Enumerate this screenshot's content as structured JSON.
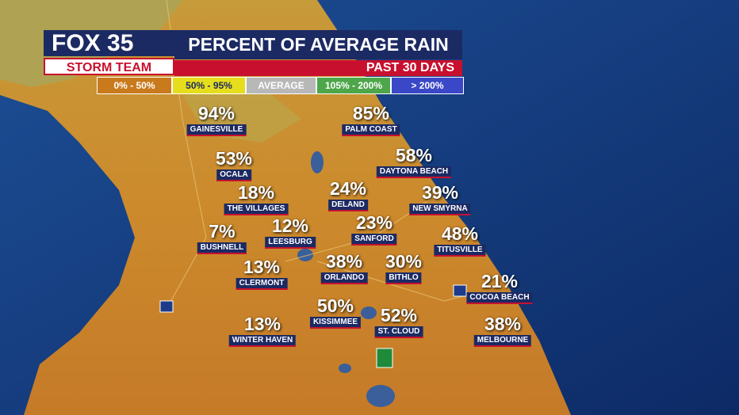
{
  "header": {
    "logo": "FOX",
    "channel": "35",
    "brand": "STORM TEAM",
    "title": "PERCENT OF AVERAGE RAIN",
    "subtitle": "PAST 30 DAYS"
  },
  "legend": [
    "0% - 50%",
    "50% - 95%",
    "AVERAGE",
    "105% - 200%",
    "> 200%"
  ],
  "cities": [
    {
      "name": "GAINESVILLE",
      "value": "94%"
    },
    {
      "name": "PALM COAST",
      "value": "85%"
    },
    {
      "name": "OCALA",
      "value": "53%"
    },
    {
      "name": "DAYTONA BEACH",
      "value": "58%"
    },
    {
      "name": "THE VILLAGES",
      "value": "18%"
    },
    {
      "name": "DELAND",
      "value": "24%"
    },
    {
      "name": "NEW SMYRNA",
      "value": "39%"
    },
    {
      "name": "LEESBURG",
      "value": "12%"
    },
    {
      "name": "SANFORD",
      "value": "23%"
    },
    {
      "name": "BUSHNELL",
      "value": "7%"
    },
    {
      "name": "TITUSVILLE",
      "value": "48%"
    },
    {
      "name": "CLERMONT",
      "value": "13%"
    },
    {
      "name": "ORLANDO",
      "value": "38%"
    },
    {
      "name": "BITHLO",
      "value": "30%"
    },
    {
      "name": "COCOA BEACH",
      "value": "21%"
    },
    {
      "name": "KISSIMMEE",
      "value": "50%"
    },
    {
      "name": "ST. CLOUD",
      "value": "52%"
    },
    {
      "name": "WINTER HAVEN",
      "value": "13%"
    },
    {
      "name": "MELBOURNE",
      "value": "38%"
    }
  ]
}
